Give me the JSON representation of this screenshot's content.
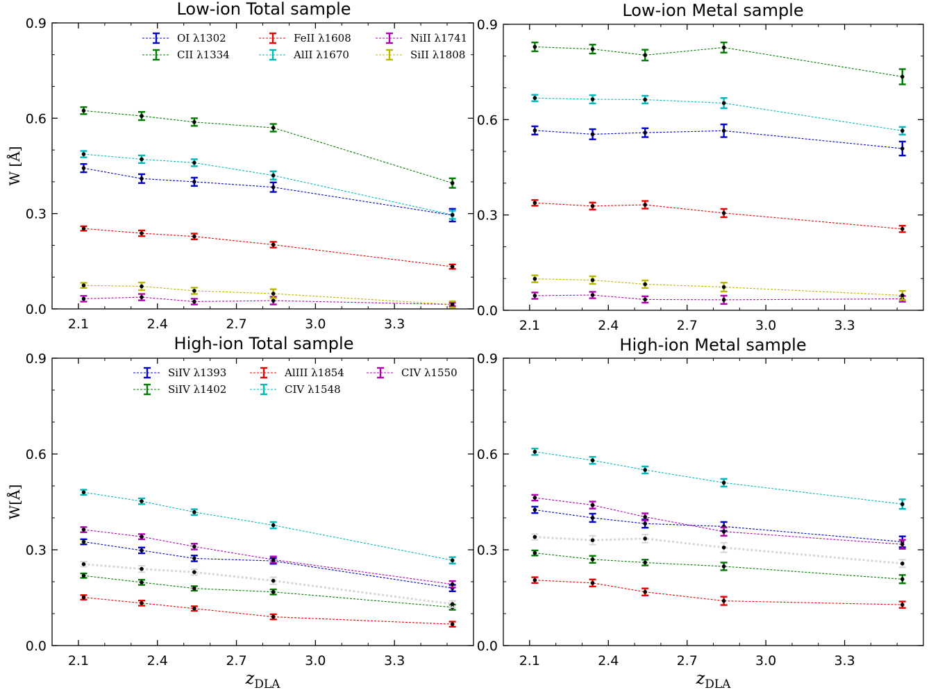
{
  "chart_data": [
    {
      "type": "line",
      "title": "Low-ion  Total sample",
      "xlabel": "",
      "ylabel": "W [Å]",
      "xlim": [
        2.0,
        3.6
      ],
      "ylim": [
        0.0,
        0.9
      ],
      "xticks": [
        "2.1",
        "2.4",
        "2.7",
        "3.0",
        "3.3"
      ],
      "yticks": [
        "0.0",
        "0.3",
        "0.6",
        "0.9"
      ],
      "x": [
        2.12,
        2.34,
        2.54,
        2.84,
        3.52
      ],
      "legend": "upper",
      "series": [
        {
          "name": "OI λ1302",
          "color": "#0000cc",
          "values": [
            0.443,
            0.41,
            0.4,
            0.383,
            0.295
          ],
          "err": [
            0.013,
            0.014,
            0.013,
            0.015,
            0.02
          ]
        },
        {
          "name": "CII λ1334",
          "color": "#007a00",
          "values": [
            0.624,
            0.607,
            0.588,
            0.57,
            0.396
          ],
          "err": [
            0.011,
            0.013,
            0.012,
            0.012,
            0.015
          ]
        },
        {
          "name": "FeII λ1608",
          "color": "#e60000",
          "values": [
            0.253,
            0.238,
            0.228,
            0.202,
            0.133
          ],
          "err": [
            0.007,
            0.009,
            0.009,
            0.009,
            0.007
          ]
        },
        {
          "name": "AlII λ1670",
          "color": "#00b8b8",
          "values": [
            0.487,
            0.471,
            0.46,
            0.42,
            0.296
          ],
          "err": [
            0.01,
            0.012,
            0.011,
            0.013,
            0.013
          ]
        },
        {
          "name": "NiII λ1741",
          "color": "#b000b0",
          "values": [
            0.032,
            0.037,
            0.023,
            0.026,
            0.014
          ],
          "err": [
            0.009,
            0.01,
            0.009,
            0.012,
            0.005
          ]
        },
        {
          "name": "SiII λ1808",
          "color": "#b8b800",
          "values": [
            0.074,
            0.071,
            0.057,
            0.048,
            0.014
          ],
          "err": [
            0.008,
            0.012,
            0.01,
            0.014,
            0.01
          ]
        }
      ]
    },
    {
      "type": "line",
      "title": "Low-ion  Metal sample",
      "xlabel": "",
      "ylabel": "",
      "xlim": [
        2.0,
        3.6
      ],
      "ylim": [
        0.0,
        0.9
      ],
      "xticks": [
        "2.1",
        "2.4",
        "2.7",
        "3.0",
        "3.3"
      ],
      "yticks": [
        "0.0",
        "0.3",
        "0.6",
        "0.9"
      ],
      "x": [
        2.12,
        2.34,
        2.54,
        2.84,
        3.52
      ],
      "series": [
        {
          "name": "OI λ1302",
          "color": "#0000cc",
          "values": [
            0.566,
            0.554,
            0.559,
            0.565,
            0.509
          ],
          "err": [
            0.013,
            0.016,
            0.014,
            0.02,
            0.022
          ]
        },
        {
          "name": "CII λ1334",
          "color": "#007a00",
          "values": [
            0.829,
            0.822,
            0.803,
            0.827,
            0.735
          ],
          "err": [
            0.014,
            0.014,
            0.017,
            0.016,
            0.024
          ]
        },
        {
          "name": "FeII λ1608",
          "color": "#e60000",
          "values": [
            0.338,
            0.328,
            0.332,
            0.306,
            0.256
          ],
          "err": [
            0.009,
            0.011,
            0.012,
            0.013,
            0.01
          ]
        },
        {
          "name": "AlII λ1670",
          "color": "#00b8b8",
          "values": [
            0.668,
            0.664,
            0.663,
            0.652,
            0.565
          ],
          "err": [
            0.01,
            0.013,
            0.012,
            0.016,
            0.012
          ]
        },
        {
          "name": "NiII λ1741",
          "color": "#b000b0",
          "values": [
            0.046,
            0.048,
            0.034,
            0.033,
            0.036
          ],
          "err": [
            0.01,
            0.01,
            0.01,
            0.013,
            0.009
          ]
        },
        {
          "name": "SiII λ1808",
          "color": "#b8b800",
          "values": [
            0.099,
            0.095,
            0.082,
            0.073,
            0.047
          ],
          "err": [
            0.011,
            0.012,
            0.012,
            0.014,
            0.014
          ]
        }
      ]
    },
    {
      "type": "line",
      "title": "High-ion  Total sample",
      "xlabel": "z_DLA",
      "ylabel": "W[Å]",
      "xlim": [
        2.0,
        3.6
      ],
      "ylim": [
        0.0,
        0.9
      ],
      "xticks": [
        "2.1",
        "2.4",
        "2.7",
        "3.0",
        "3.3"
      ],
      "yticks": [
        "0.0",
        "0.3",
        "0.6",
        "0.9"
      ],
      "x": [
        2.12,
        2.34,
        2.54,
        2.84,
        3.52
      ],
      "legend": "upper",
      "series": [
        {
          "name": "SiIV λ1393",
          "color": "#0000cc",
          "values": [
            0.325,
            0.298,
            0.273,
            0.265,
            0.18
          ],
          "err": [
            0.008,
            0.009,
            0.009,
            0.009,
            0.01
          ]
        },
        {
          "name": "SiIV λ1402",
          "color": "#007a00",
          "values": [
            0.219,
            0.198,
            0.179,
            0.168,
            0.12
          ],
          "err": [
            0.007,
            0.008,
            0.007,
            0.008,
            0.008
          ]
        },
        {
          "name": "AlIII λ1854",
          "color": "#e60000",
          "values": [
            0.151,
            0.133,
            0.116,
            0.09,
            0.067
          ],
          "err": [
            0.007,
            0.008,
            0.007,
            0.008,
            0.008
          ]
        },
        {
          "name": "CIV λ1548",
          "color": "#00b8b8",
          "values": [
            0.48,
            0.452,
            0.418,
            0.377,
            0.267
          ],
          "err": [
            0.008,
            0.009,
            0.009,
            0.01,
            0.01
          ]
        },
        {
          "name": "CIV λ1550",
          "color": "#b000b0",
          "values": [
            0.363,
            0.341,
            0.31,
            0.269,
            0.192
          ],
          "err": [
            0.008,
            0.008,
            0.009,
            0.01,
            0.01
          ]
        },
        {
          "name": "",
          "color": "#d6d6d6",
          "style": "dotted",
          "values": [
            0.255,
            0.24,
            0.23,
            0.203,
            0.13
          ],
          "err": [
            0.008,
            0.01,
            0.009,
            0.011,
            0.01
          ]
        }
      ]
    },
    {
      "type": "line",
      "title": "High-ion  Metal sample",
      "xlabel": "z_DLA",
      "ylabel": "",
      "xlim": [
        2.0,
        3.6
      ],
      "ylim": [
        0.0,
        0.9
      ],
      "xticks": [
        "2.1",
        "2.4",
        "2.7",
        "3.0",
        "3.3"
      ],
      "yticks": [
        "0.0",
        "0.3",
        "0.6",
        "0.9"
      ],
      "x": [
        2.12,
        2.34,
        2.54,
        2.84,
        3.52
      ],
      "series": [
        {
          "name": "SiIV λ1393",
          "color": "#0000cc",
          "values": [
            0.425,
            0.4,
            0.382,
            0.373,
            0.325
          ],
          "err": [
            0.01,
            0.013,
            0.013,
            0.014,
            0.017
          ]
        },
        {
          "name": "SiIV λ1402",
          "color": "#007a00",
          "values": [
            0.29,
            0.27,
            0.26,
            0.248,
            0.208
          ],
          "err": [
            0.008,
            0.011,
            0.009,
            0.012,
            0.013
          ]
        },
        {
          "name": "AlIII λ1854",
          "color": "#e60000",
          "values": [
            0.205,
            0.196,
            0.168,
            0.14,
            0.128
          ],
          "err": [
            0.009,
            0.011,
            0.011,
            0.013,
            0.01
          ]
        },
        {
          "name": "CIV λ1548",
          "color": "#00b8b8",
          "values": [
            0.607,
            0.58,
            0.55,
            0.51,
            0.443
          ],
          "err": [
            0.01,
            0.011,
            0.011,
            0.012,
            0.015
          ]
        },
        {
          "name": "CIV λ1550",
          "color": "#b000b0",
          "values": [
            0.463,
            0.44,
            0.403,
            0.357,
            0.317
          ],
          "err": [
            0.009,
            0.011,
            0.011,
            0.013,
            0.014
          ]
        },
        {
          "name": "",
          "color": "#d6d6d6",
          "style": "dotted",
          "values": [
            0.34,
            0.33,
            0.335,
            0.307,
            0.257
          ],
          "err": [
            0.009,
            0.014,
            0.013,
            0.015,
            0.012
          ]
        }
      ]
    }
  ]
}
